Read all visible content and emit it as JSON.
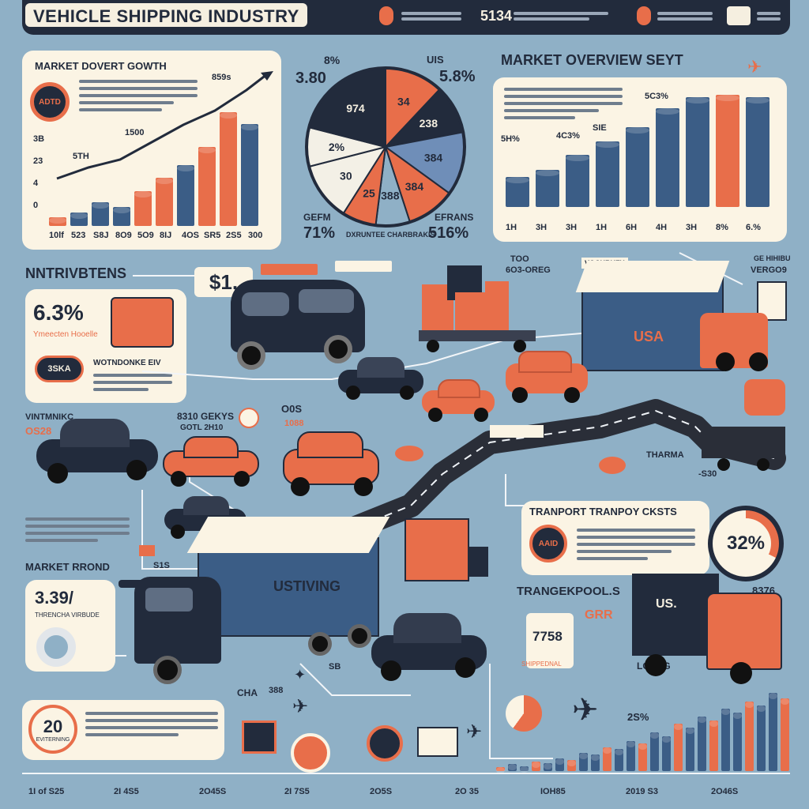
{
  "header": {
    "title": "VEHICLE SHIPPING INDUSTRY",
    "center_value": "5134"
  },
  "market_growth": {
    "title": "MARKET DOVERT GOWTH",
    "badge": "ADTD",
    "value_top": "859s",
    "value_mid": "1500",
    "value_left": "5TH",
    "bars": [
      6,
      9,
      16,
      13,
      24,
      33,
      42,
      54,
      78,
      70
    ],
    "bar_colors": [
      "#e86e4a",
      "#3b5d86",
      "#3b5d86",
      "#3b5d86",
      "#e86e4a",
      "#e86e4a",
      "#3b5d86",
      "#e86e4a",
      "#e86e4a",
      "#3b5d86"
    ],
    "yticks": [
      "3B",
      "23",
      "4",
      "0"
    ],
    "xticks": [
      "10lf",
      "523",
      "S8J",
      "8O9",
      "5O9",
      "8IJ",
      "4OS",
      "SR5",
      "2S5",
      "300"
    ]
  },
  "pie": {
    "label_tl": "3.80",
    "label_t": "8%",
    "label_tr1": "5.8%",
    "label_tr2": "UIS",
    "label_l": "SE",
    "slices": [
      {
        "label": "34",
        "color": "#e86e4a",
        "value": 12
      },
      {
        "label": "238",
        "color": "#222b3c",
        "value": 10
      },
      {
        "label": "384",
        "color": "#6f8eb8",
        "value": 13
      },
      {
        "label": "384",
        "color": "#e86e4a",
        "value": 10
      },
      {
        "label": "388",
        "color": "#8fb0c6",
        "value": 7
      },
      {
        "label": "25",
        "color": "#e86e4a",
        "value": 7
      },
      {
        "label": "30",
        "color": "#f3f0e6",
        "value": 12
      },
      {
        "label": "2%",
        "color": "#f3f0e6",
        "value": 8
      },
      {
        "label": "974",
        "color": "#222b3c",
        "value": 21
      }
    ],
    "inner_label": "974",
    "left_label": "GEFM",
    "left_value": "71%",
    "bottom_label": "DXRUNTEE CHARBRAKIS",
    "right_label": "EFRANS",
    "right_value": "516%"
  },
  "market_overview": {
    "title": "MARKET OVERVIEW SEYT",
    "label_a": "5C3%",
    "label_b": "4C3%",
    "label_c": "SIE",
    "label_left": "5H%",
    "bars": [
      22,
      27,
      38,
      48,
      58,
      72,
      80,
      82,
      80
    ],
    "bar_colors": [
      "#3b5d86",
      "#3b5d86",
      "#3b5d86",
      "#3b5d86",
      "#3b5d86",
      "#3b5d86",
      "#3b5d86",
      "#e86e4a",
      "#3b5d86"
    ],
    "xticks": [
      "1H",
      "3H",
      "3H",
      "1H",
      "6H",
      "4H",
      "3H",
      "8%",
      "6.%"
    ]
  },
  "nntr": {
    "title": "NNTRIVBTENS",
    "value": "6.3%",
    "caption": "Ymeecten Hooelle",
    "sub_title": "WOTNDONKE EIV",
    "badge": "3SKA",
    "price_sign": "$1,"
  },
  "labels": {
    "vmnt_1": "VINTMNIKC",
    "vmnt_2": "OS28",
    "gek_1": "8310 GEKYS",
    "gek_2": "GOTL 2H10",
    "ois_1": "O0S",
    "ois_2": "1088",
    "voch": "VOCHRUFY",
    "gebh": "GE HIHIBU",
    "vergo": "VERGO9",
    "ton_1": "TOO",
    "ton_2": "6O3-OREG",
    "usa": "USA",
    "thrama": "THARMA",
    "neg": "-S30",
    "cha": "CHA",
    "b38": "388",
    "sb": "SB",
    "s1s": "S1S",
    "trk_us": "US.",
    "ustv": "USTIVING"
  },
  "market_round": {
    "title": "MARKET RROND",
    "value": "3.39/",
    "caption": "THRENCHA VIRBUDE"
  },
  "transport_costs": {
    "title": "TRANPORT TRANPOY CKSTS",
    "badge": "AAID",
    "value": "32%"
  },
  "transport_pools": {
    "title": "TRANGEKPOOL.S",
    "value_a": "GRR",
    "value_b": "7758",
    "caption": "SHIPPEDNAL",
    "value_c": "8376",
    "value_d": "LOBEG"
  },
  "footer_card": {
    "value": "20",
    "caption": "EVITERNING"
  },
  "bottom_chart": {
    "label": "2S%",
    "bars": [
      4,
      8,
      5,
      10,
      9,
      14,
      12,
      20,
      18,
      26,
      24,
      33,
      30,
      42,
      38,
      52,
      48,
      60,
      55,
      68,
      64,
      76,
      72,
      86,
      80
    ],
    "xticks": [
      "1I of S25",
      "2I 4S5",
      "2O45S",
      "2I 7S5",
      "2O5S",
      "2O 35",
      "IOH85",
      "2019 S3",
      "2O46S"
    ]
  }
}
